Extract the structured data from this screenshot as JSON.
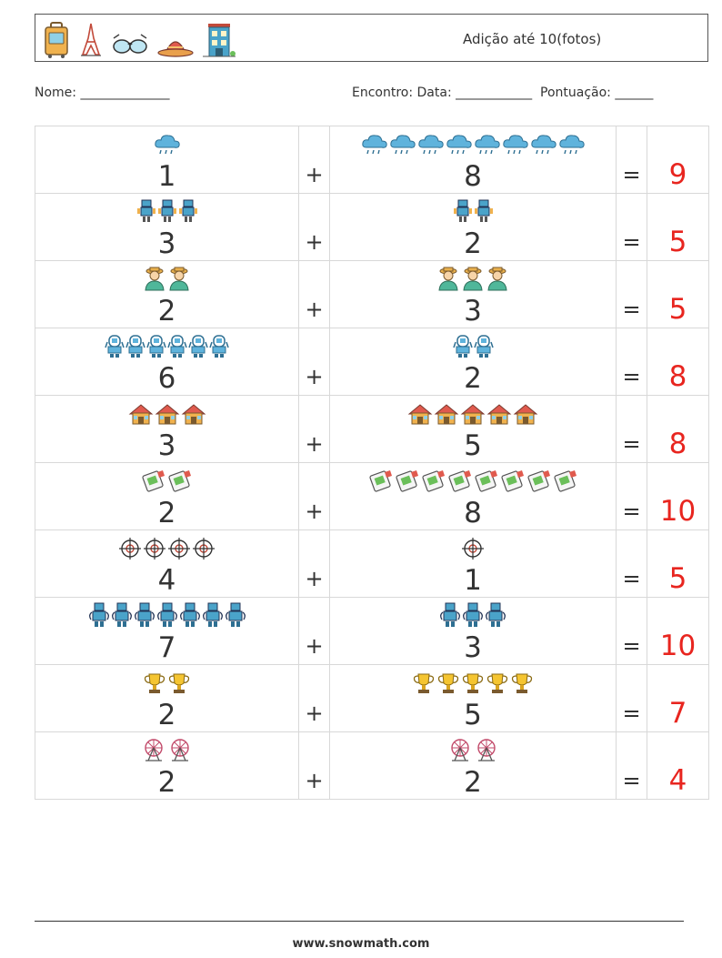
{
  "header": {
    "title": "Adição até 10(fotos)",
    "icons": [
      "suitcase-icon",
      "eiffel-tower-icon",
      "sunglasses-icon",
      "sombrero-icon",
      "hotel-building-icon"
    ]
  },
  "info": {
    "name_label": "Nome: ______________",
    "right_label": "Encontro: Data: ____________  Pontuação: ______"
  },
  "operators": {
    "plus": "+",
    "equals": "="
  },
  "problems": [
    {
      "a": "1",
      "a_icon": "rain-cloud",
      "b": "8",
      "b_icon": "rain-cloud",
      "answer": "9"
    },
    {
      "a": "3",
      "a_icon": "robot",
      "b": "2",
      "b_icon": "robot",
      "answer": "5"
    },
    {
      "a": "2",
      "a_icon": "farmer",
      "b": "3",
      "b_icon": "farmer",
      "answer": "5"
    },
    {
      "a": "6",
      "a_icon": "astronaut-robot",
      "b": "2",
      "b_icon": "astronaut-robot",
      "answer": "8"
    },
    {
      "a": "3",
      "a_icon": "house",
      "b": "5",
      "b_icon": "house",
      "answer": "8"
    },
    {
      "a": "2",
      "a_icon": "ticket",
      "b": "8",
      "b_icon": "ticket",
      "answer": "10"
    },
    {
      "a": "4",
      "a_icon": "crosshair",
      "b": "1",
      "b_icon": "crosshair",
      "answer": "5"
    },
    {
      "a": "7",
      "a_icon": "blue-robot",
      "b": "3",
      "b_icon": "blue-robot",
      "answer": "10"
    },
    {
      "a": "2",
      "a_icon": "trophy",
      "b": "5",
      "b_icon": "trophy",
      "answer": "7"
    },
    {
      "a": "2",
      "a_icon": "ferris-wheel",
      "b": "2",
      "b_icon": "ferris-wheel",
      "answer": "4"
    }
  ],
  "footer": {
    "url": "www.snowmath.com"
  }
}
